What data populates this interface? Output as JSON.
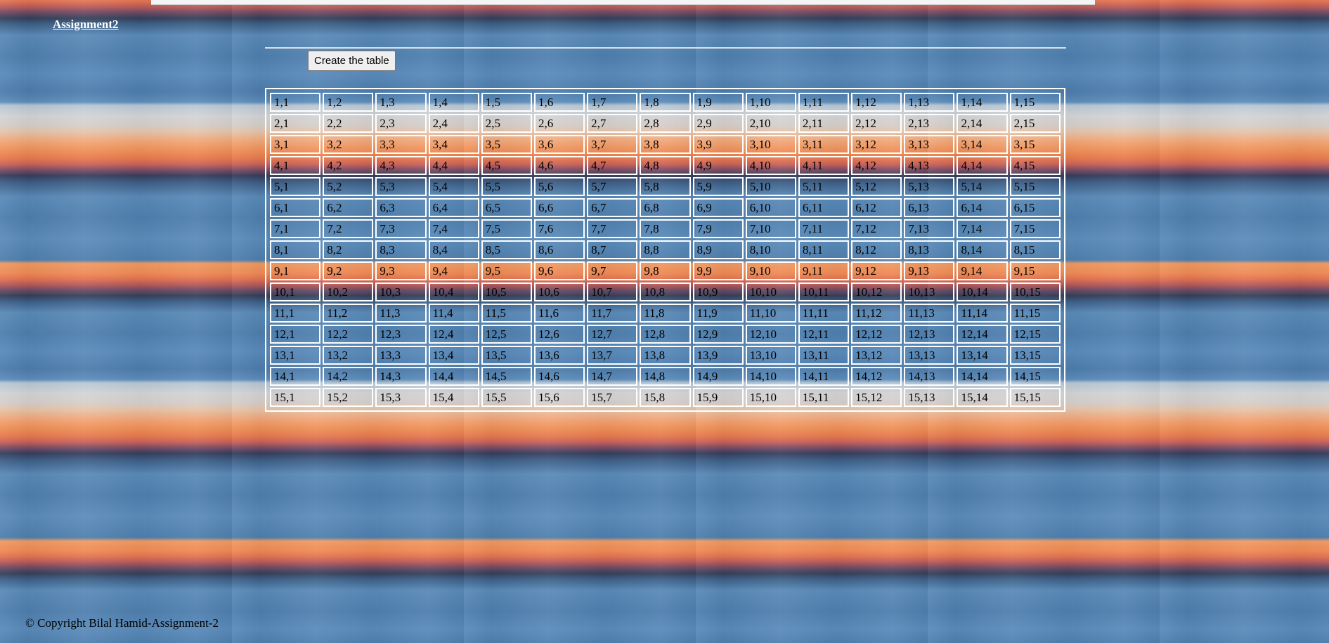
{
  "header": {
    "title_link": "Assignment2"
  },
  "controls": {
    "create_button_label": "Create the table"
  },
  "table": {
    "rows": [
      [
        "1,1",
        "1,2",
        "1,3",
        "1,4",
        "1,5",
        "1,6",
        "1,7",
        "1,8",
        "1,9",
        "1,10",
        "1,11",
        "1,12",
        "1,13",
        "1,14",
        "1,15"
      ],
      [
        "2,1",
        "2,2",
        "2,3",
        "2,4",
        "2,5",
        "2,6",
        "2,7",
        "2,8",
        "2,9",
        "2,10",
        "2,11",
        "2,12",
        "2,13",
        "2,14",
        "2,15"
      ],
      [
        "3,1",
        "3,2",
        "3,3",
        "3,4",
        "3,5",
        "3,6",
        "3,7",
        "3,8",
        "3,9",
        "3,10",
        "3,11",
        "3,12",
        "3,13",
        "3,14",
        "3,15"
      ],
      [
        "4,1",
        "4,2",
        "4,3",
        "4,4",
        "4,5",
        "4,6",
        "4,7",
        "4,8",
        "4,9",
        "4,10",
        "4,11",
        "4,12",
        "4,13",
        "4,14",
        "4,15"
      ],
      [
        "5,1",
        "5,2",
        "5,3",
        "5,4",
        "5,5",
        "5,6",
        "5,7",
        "5,8",
        "5,9",
        "5,10",
        "5,11",
        "5,12",
        "5,13",
        "5,14",
        "5,15"
      ],
      [
        "6,1",
        "6,2",
        "6,3",
        "6,4",
        "6,5",
        "6,6",
        "6,7",
        "6,8",
        "6,9",
        "6,10",
        "6,11",
        "6,12",
        "6,13",
        "6,14",
        "6,15"
      ],
      [
        "7,1",
        "7,2",
        "7,3",
        "7,4",
        "7,5",
        "7,6",
        "7,7",
        "7,8",
        "7,9",
        "7,10",
        "7,11",
        "7,12",
        "7,13",
        "7,14",
        "7,15"
      ],
      [
        "8,1",
        "8,2",
        "8,3",
        "8,4",
        "8,5",
        "8,6",
        "8,7",
        "8,8",
        "8,9",
        "8,10",
        "8,11",
        "8,12",
        "8,13",
        "8,14",
        "8,15"
      ],
      [
        "9,1",
        "9,2",
        "9,3",
        "9,4",
        "9,5",
        "9,6",
        "9,7",
        "9,8",
        "9,9",
        "9,10",
        "9,11",
        "9,12",
        "9,13",
        "9,14",
        "9,15"
      ],
      [
        "10,1",
        "10,2",
        "10,3",
        "10,4",
        "10,5",
        "10,6",
        "10,7",
        "10,8",
        "10,9",
        "10,10",
        "10,11",
        "10,12",
        "10,13",
        "10,14",
        "10,15"
      ],
      [
        "11,1",
        "11,2",
        "11,3",
        "11,4",
        "11,5",
        "11,6",
        "11,7",
        "11,8",
        "11,9",
        "11,10",
        "11,11",
        "11,12",
        "11,13",
        "11,14",
        "11,15"
      ],
      [
        "12,1",
        "12,2",
        "12,3",
        "12,4",
        "12,5",
        "12,6",
        "12,7",
        "12,8",
        "12,9",
        "12,10",
        "12,11",
        "12,12",
        "12,13",
        "12,14",
        "12,15"
      ],
      [
        "13,1",
        "13,2",
        "13,3",
        "13,4",
        "13,5",
        "13,6",
        "13,7",
        "13,8",
        "13,9",
        "13,10",
        "13,11",
        "13,12",
        "13,13",
        "13,14",
        "13,15"
      ],
      [
        "14,1",
        "14,2",
        "14,3",
        "14,4",
        "14,5",
        "14,6",
        "14,7",
        "14,8",
        "14,9",
        "14,10",
        "14,11",
        "14,12",
        "14,13",
        "14,14",
        "14,15"
      ],
      [
        "15,1",
        "15,2",
        "15,3",
        "15,4",
        "15,5",
        "15,6",
        "15,7",
        "15,8",
        "15,9",
        "15,10",
        "15,11",
        "15,12",
        "15,13",
        "15,14",
        "15,15"
      ]
    ]
  },
  "footer": {
    "copyright": "© Copyright Bilal Hamid-Assignment-2"
  },
  "colors": {
    "border": "#ffffff",
    "text": "#000000",
    "link": "#ffffff"
  }
}
